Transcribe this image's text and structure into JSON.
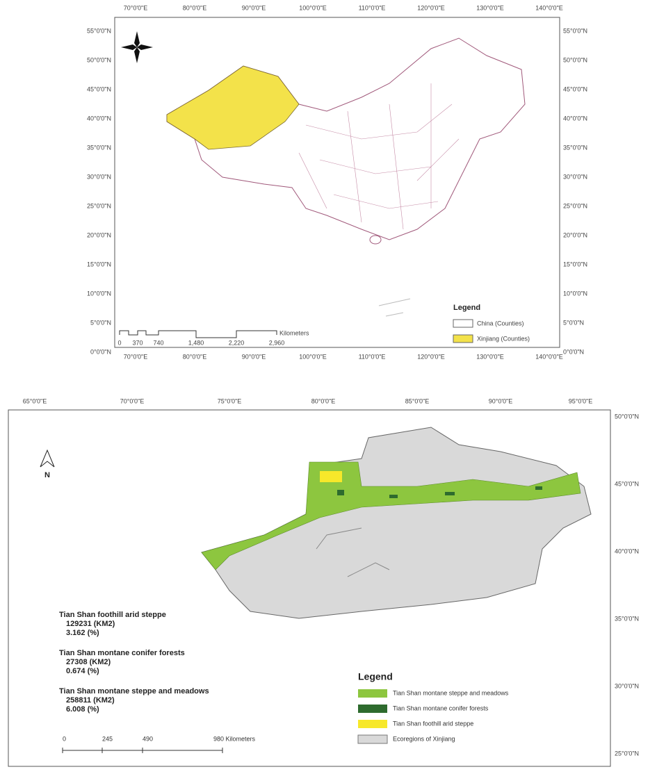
{
  "top_map": {
    "lon_labels_top": [
      "70°0'0\"E",
      "80°0'0\"E",
      "90°0'0\"E",
      "100°0'0\"E",
      "110°0'0\"E",
      "120°0'0\"E",
      "130°0'0\"E",
      "140°0'0\"E"
    ],
    "lon_labels_bottom": [
      "70°0'0\"E",
      "80°0'0\"E",
      "90°0'0\"E",
      "100°0'0\"E",
      "110°0'0\"E",
      "120°0'0\"E",
      "130°0'0\"E",
      "140°0'0\"E"
    ],
    "lat_labels_left": [
      "55°0'0\"N",
      "50°0'0\"N",
      "45°0'0\"N",
      "40°0'0\"N",
      "35°0'0\"N",
      "30°0'0\"N",
      "25°0'0\"N",
      "20°0'0\"N",
      "15°0'0\"N",
      "10°0'0\"N",
      "5°0'0\"N",
      "0°0'0\"N"
    ],
    "lat_labels_right": [
      "55°0'0\"N",
      "50°0'0\"N",
      "45°0'0\"N",
      "40°0'0\"N",
      "35°0'0\"N",
      "30°0'0\"N",
      "25°0'0\"N",
      "20°0'0\"N",
      "15°0'0\"N",
      "10°0'0\"N",
      "5°0'0\"N",
      "0°0'0\"N"
    ],
    "scale_labels": [
      "0",
      "370",
      "740",
      "1,480",
      "2,220",
      "2,960"
    ],
    "scale_unit": "Kilometers",
    "legend": {
      "title": "Legend",
      "items": [
        "China (Counties)",
        "Xinjiang (Counties)"
      ]
    }
  },
  "bottom_map": {
    "lon_labels_top": [
      "65°0'0\"E",
      "70°0'0\"E",
      "75°0'0\"E",
      "80°0'0\"E",
      "85°0'0\"E",
      "90°0'0\"E",
      "95°0'0\"E"
    ],
    "lat_labels_right": [
      "50°0'0\"N",
      "45°0'0\"N",
      "40°0'0\"N",
      "35°0'0\"N",
      "30°0'0\"N",
      "25°0'0\"N"
    ],
    "north": "N",
    "stats": [
      {
        "name": "Tian Shan foothill arid steppe",
        "area": "129231   (KM2)",
        "percent": "3.162     (%)"
      },
      {
        "name": "Tian Shan montane conifer forests",
        "area": "27308    (KM2)",
        "percent": "0.674     (%)"
      },
      {
        "name": "Tian Shan montane steppe and meadows",
        "area": "258811   (KM2)",
        "percent": "6.008     (%)"
      }
    ],
    "scale_labels": [
      "0",
      "245",
      "490",
      "980 Kilometers"
    ],
    "legend": {
      "title": "Legend",
      "items": [
        "Tian Shan montane steppe and meadows",
        "Tian Shan montane conifer forests",
        "Tian Shan foothill arid steppe",
        "Ecoregions of Xinjiang"
      ]
    }
  }
}
